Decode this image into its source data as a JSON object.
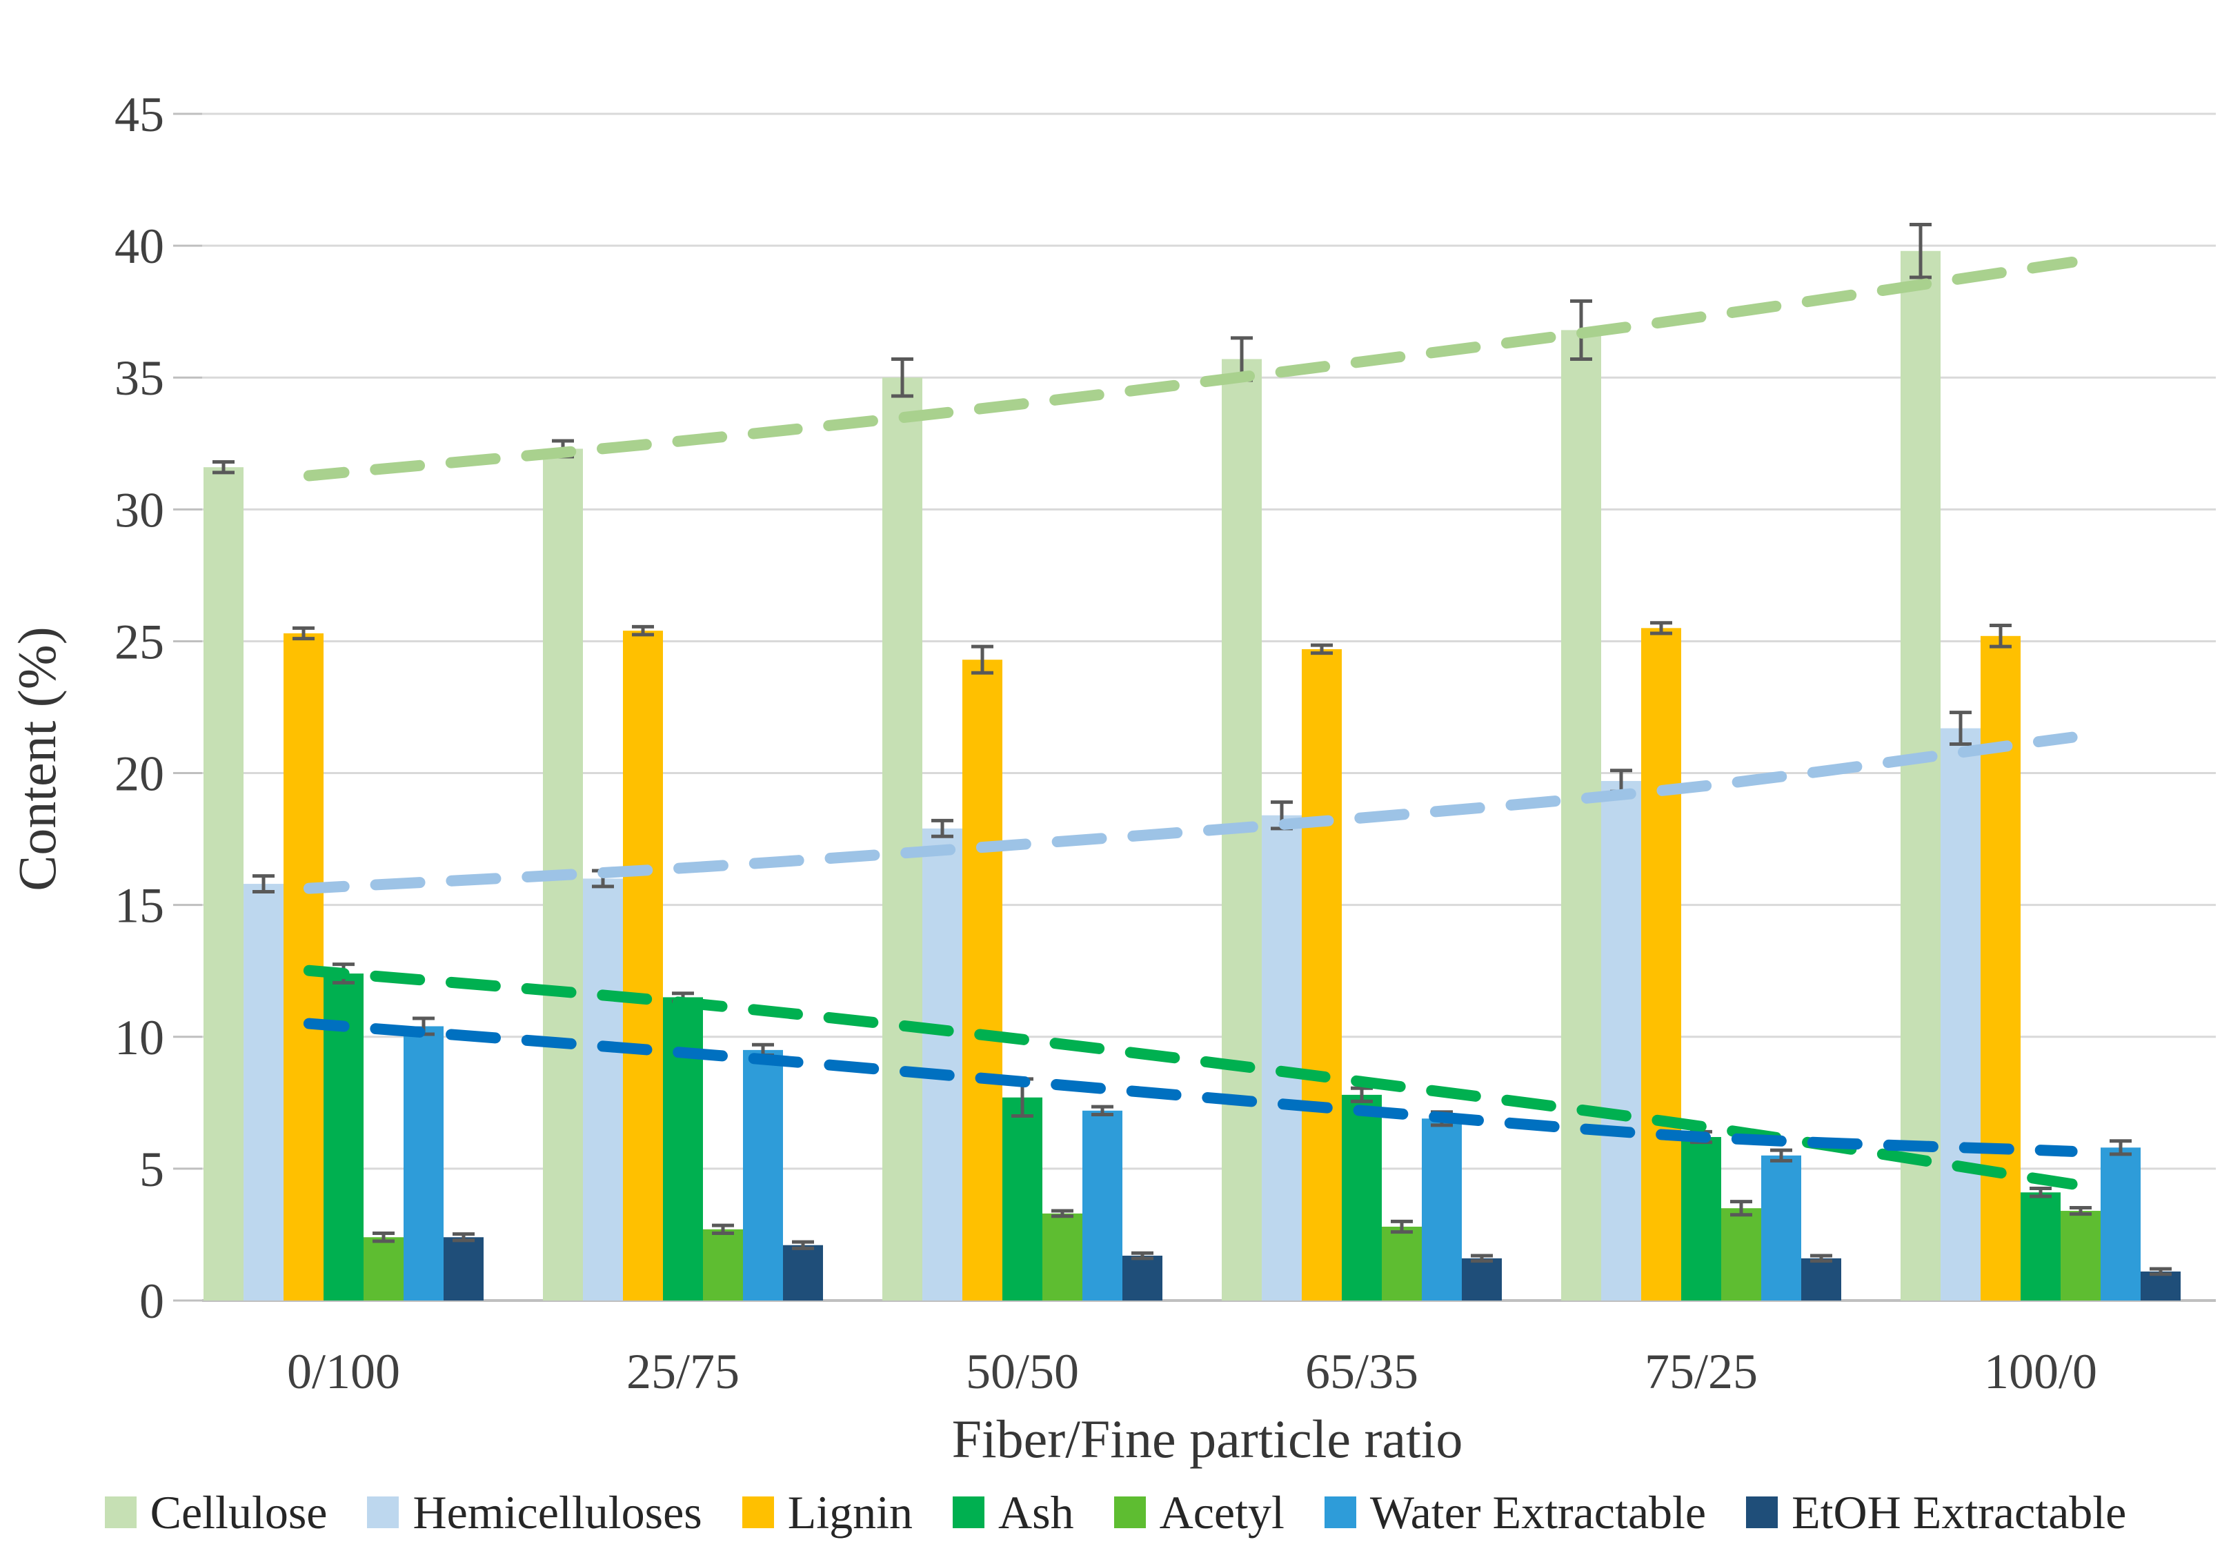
{
  "chart_data": {
    "type": "bar",
    "title": "",
    "xlabel": "Fiber/Fine particle ratio",
    "ylabel": "Content (%)",
    "ylim": [
      0,
      45
    ],
    "yticks": [
      0,
      5,
      10,
      15,
      20,
      25,
      30,
      35,
      40,
      45
    ],
    "grid": true,
    "legend_position": "bottom",
    "categories": [
      "0/100",
      "25/75",
      "50/50",
      "65/35",
      "75/25",
      "100/0"
    ],
    "series": [
      {
        "name": "Cellulose",
        "color": "#C6E0B4",
        "values": [
          31.6,
          32.3,
          35.0,
          35.7,
          36.8,
          39.8
        ],
        "errors": [
          0.2,
          0.3,
          0.7,
          0.8,
          1.1,
          1.0
        ]
      },
      {
        "name": "Hemicelluloses",
        "color": "#BDD7EE",
        "values": [
          15.8,
          16.0,
          17.9,
          18.4,
          19.7,
          21.7
        ],
        "errors": [
          0.3,
          0.3,
          0.3,
          0.5,
          0.4,
          0.6
        ]
      },
      {
        "name": "Lignin",
        "color": "#FFC000",
        "values": [
          25.3,
          25.4,
          24.3,
          24.7,
          25.5,
          25.2
        ],
        "errors": [
          0.2,
          0.15,
          0.5,
          0.15,
          0.2,
          0.4
        ]
      },
      {
        "name": "Ash",
        "color": "#00B050",
        "values": [
          12.4,
          11.5,
          7.7,
          7.8,
          6.2,
          4.1
        ],
        "errors": [
          0.35,
          0.15,
          0.7,
          0.25,
          0.2,
          0.15
        ]
      },
      {
        "name": "Acetyl",
        "color": "#5EBD31",
        "values": [
          2.4,
          2.7,
          3.3,
          2.8,
          3.5,
          3.4
        ],
        "errors": [
          0.15,
          0.15,
          0.1,
          0.2,
          0.25,
          0.12
        ]
      },
      {
        "name": "Water Extractable",
        "color": "#2E9CD9",
        "values": [
          10.4,
          9.5,
          7.2,
          6.9,
          5.5,
          5.8
        ],
        "errors": [
          0.3,
          0.2,
          0.15,
          0.25,
          0.2,
          0.25
        ]
      },
      {
        "name": "EtOH Extractable",
        "color": "#1F4E79",
        "values": [
          2.4,
          2.1,
          1.7,
          1.6,
          1.6,
          1.1
        ],
        "errors": [
          0.12,
          0.12,
          0.1,
          0.1,
          0.1,
          0.1
        ]
      }
    ],
    "trend_lines": [
      {
        "name": "Cellulose trend",
        "color": "#A9D18E",
        "values": [
          31.4,
          32.6,
          34.0,
          35.6,
          37.3,
          39.2
        ]
      },
      {
        "name": "Hemicelluloses trend",
        "color": "#9DC3E6",
        "values": [
          15.7,
          16.4,
          17.3,
          18.3,
          19.5,
          21.2
        ]
      },
      {
        "name": "Ash trend",
        "color": "#00B050",
        "values": [
          12.4,
          11.3,
          9.9,
          8.3,
          6.6,
          4.6
        ]
      },
      {
        "name": "Water Extractable trend",
        "color": "#0070C0",
        "values": [
          10.4,
          9.4,
          8.3,
          7.2,
          6.2,
          5.7
        ]
      }
    ],
    "colors": {
      "gridline": "#D9D9D9",
      "axis_line": "#BFBFBF",
      "tick_mark": "#BFBFBF",
      "error_bar": "#595959"
    }
  }
}
